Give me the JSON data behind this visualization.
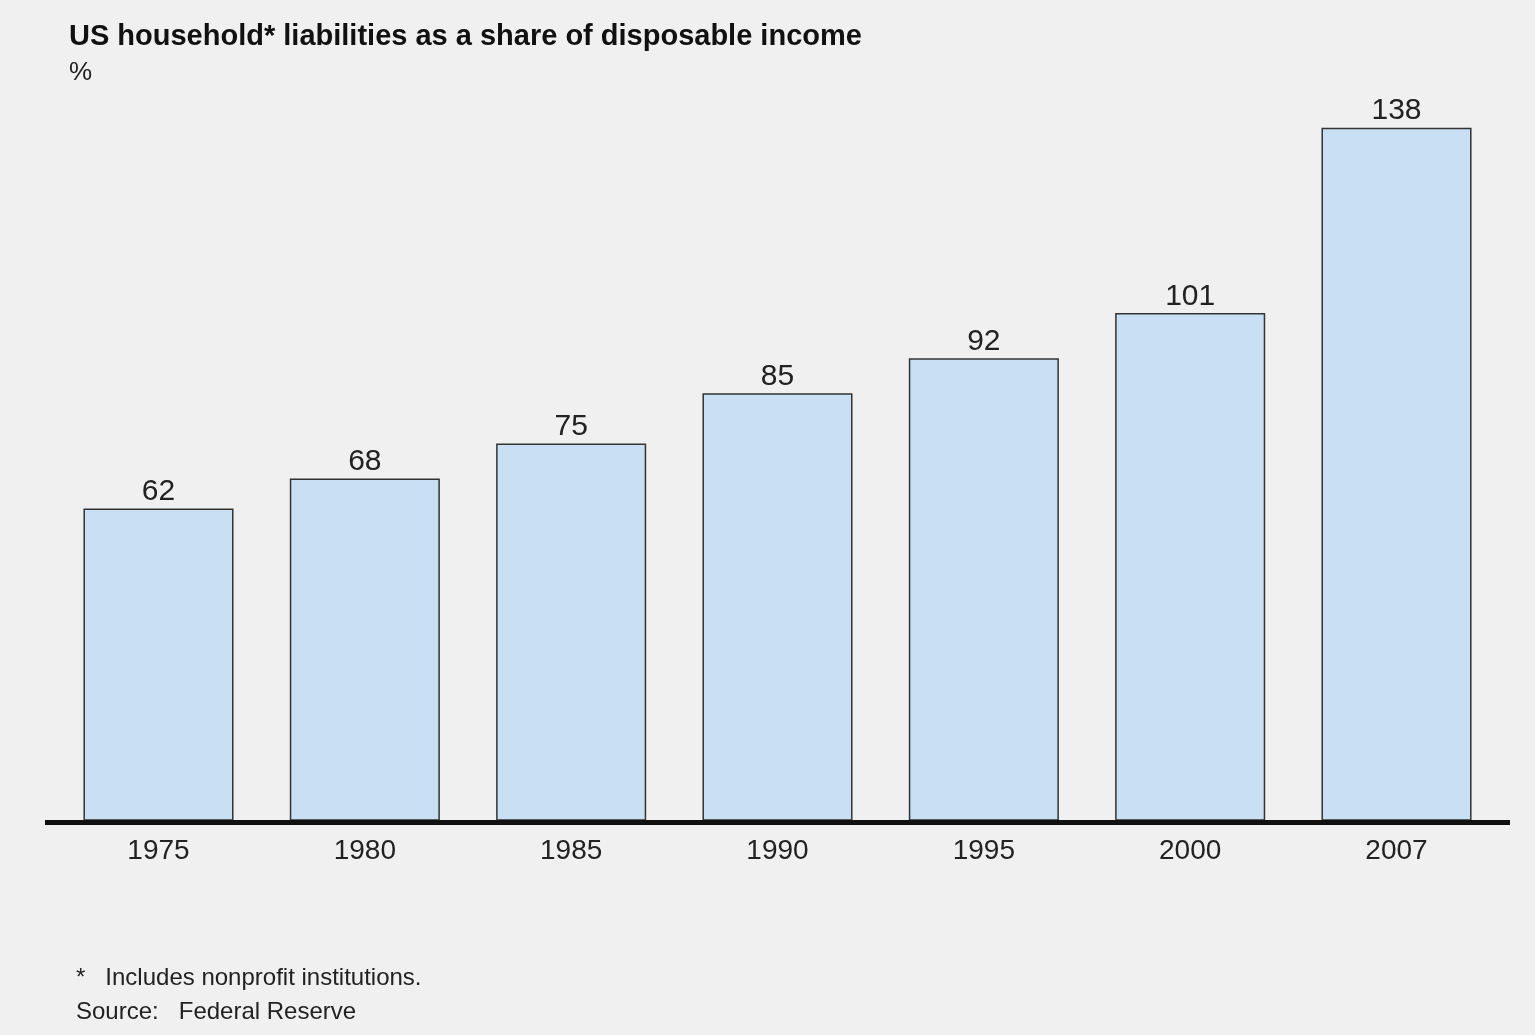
{
  "chart_data": {
    "type": "bar",
    "title": "US household* liabilities as a share of disposable income",
    "subtitle": "%",
    "categories": [
      "1975",
      "1980",
      "1985",
      "1990",
      "1995",
      "2000",
      "2007"
    ],
    "values": [
      62,
      68,
      75,
      85,
      92,
      101,
      138
    ],
    "color": "#c9dff3",
    "data_labels": true,
    "grid": false,
    "legend": false,
    "annotations": [
      "*   Includes nonprofit institutions.",
      "Source:   Federal Reserve"
    ]
  }
}
